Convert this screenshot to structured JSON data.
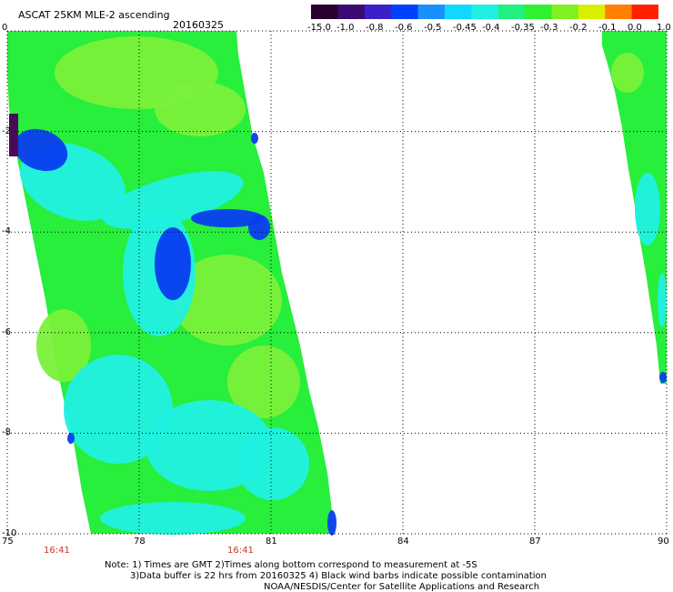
{
  "header": {
    "title": "ASCAT 25KM MLE-2 ascending",
    "date": "20160325"
  },
  "colorbar": {
    "labels": [
      "-15.0",
      "-1.0",
      "-0.8",
      "-0.6",
      "-0.5",
      "-0.45",
      "-0.4",
      "-0.35",
      "-0.3",
      "-0.2",
      "-0.1",
      "0.0",
      "1.0"
    ],
    "colors": [
      "#2a0030",
      "#3c0a70",
      "#3a20c8",
      "#0040ff",
      "#1a90ff",
      "#10d8ff",
      "#20f0e0",
      "#20f080",
      "#30f030",
      "#80f020",
      "#d8f000",
      "#ff8000",
      "#ff2000"
    ]
  },
  "map": {
    "lon_range": [
      75,
      90
    ],
    "lat_range": [
      -10,
      0
    ],
    "x_ticks": [
      "75",
      "78",
      "81",
      "84",
      "87",
      "90"
    ],
    "y_ticks": [
      "0",
      "-2",
      "-4",
      "-6",
      "-8",
      "-10"
    ],
    "time_labels": [
      "16:41",
      "16:41"
    ],
    "colors": {
      "green": "#28ee3c",
      "light_green": "#7af03a",
      "cyan": "#20f0e0",
      "blue": "#0a3cf0",
      "dark_purple": "#4a0a5a"
    }
  },
  "notes": {
    "line1": "Note: 1) Times are GMT 2)Times along bottom correspond to measurement at -5S",
    "line2": "3)Data buffer is 22 hrs from 20160325 4) Black wind barbs indicate possible contamination",
    "line3": "NOAA/NESDIS/Center for Satellite Applications and Research"
  }
}
